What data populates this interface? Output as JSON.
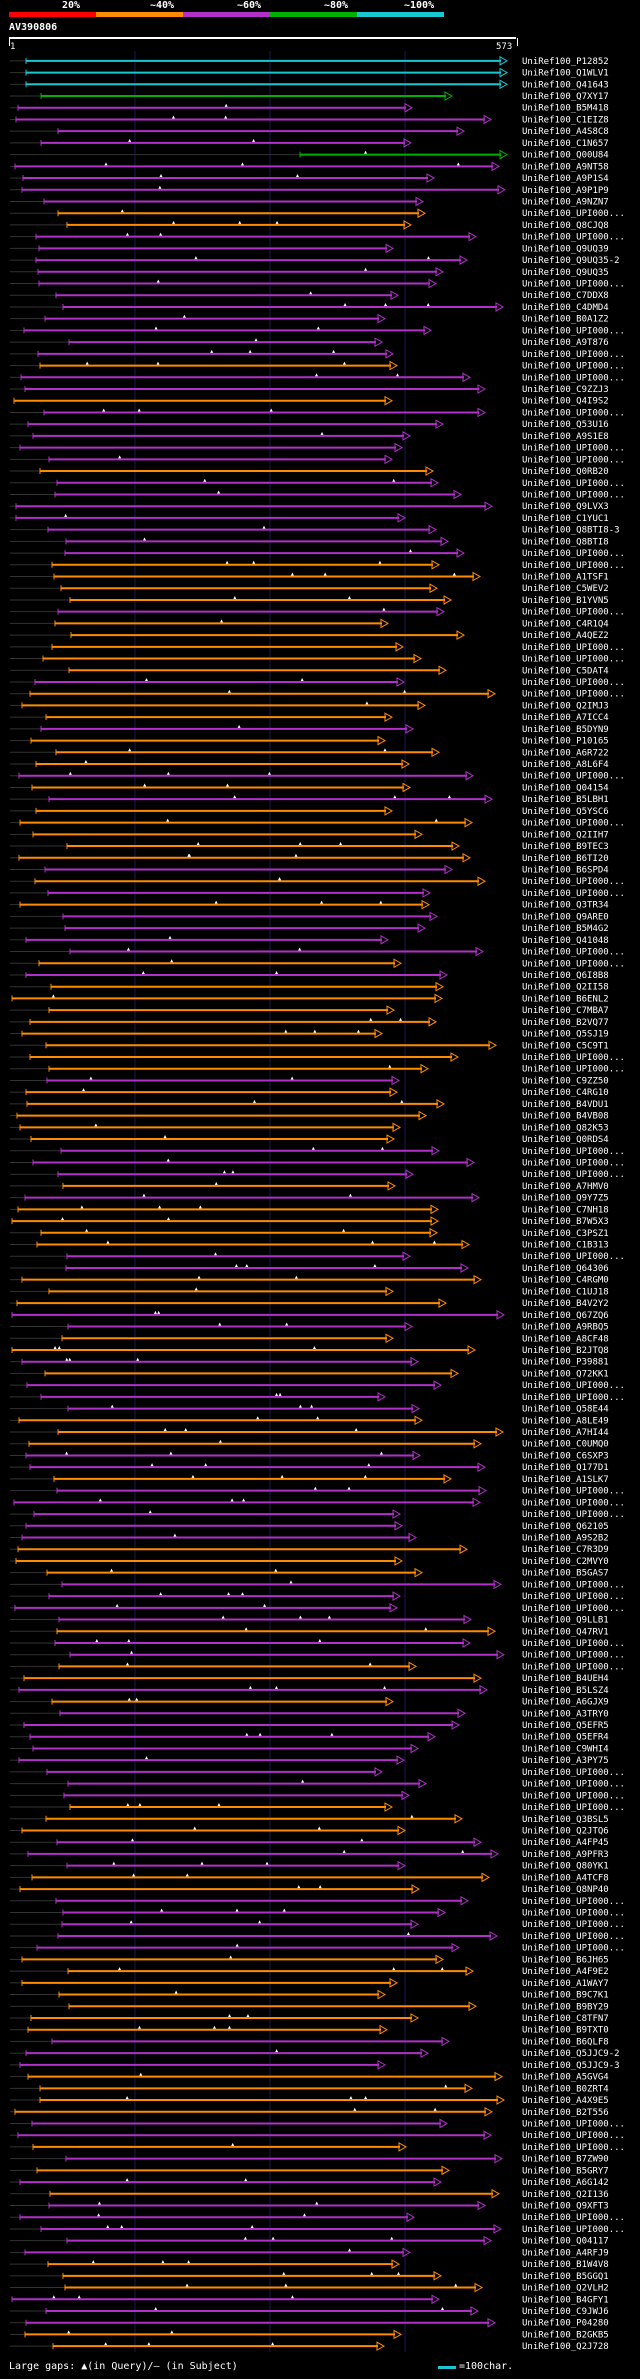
{
  "legend": {
    "labels": [
      "20%",
      "~40%",
      "~60%",
      "~80%",
      "~100%"
    ],
    "colors": [
      "#ff0000",
      "#ff8c00",
      "#b030c8",
      "#00b000",
      "#18c8d0"
    ]
  },
  "query": {
    "name": "AV390806",
    "start": "1",
    "end": "573"
  },
  "footer": {
    "gap_note": "Large gaps: ▲(in Query)/— (in Subject)",
    "scale_text": "=100char."
  },
  "chart_data": {
    "type": "alignment-overview",
    "title": "AV390806",
    "query_length": 573,
    "hits": [
      {
        "id": "UniRef100_P12852",
        "color": "#18c8d0"
      },
      {
        "id": "UniRef100_Q1WLV1",
        "color": "#18c8d0"
      },
      {
        "id": "UniRef100_Q41643",
        "color": "#18c8d0"
      },
      {
        "id": "UniRef100_Q7XY17",
        "color": "#00b000"
      },
      {
        "id": "UniRef100_B5M418",
        "color": "#b030c8"
      },
      {
        "id": "UniRef100_C1EIZ8",
        "color": "#b030c8"
      },
      {
        "id": "UniRef100_A4S8C8",
        "color": "#b030c8"
      },
      {
        "id": "UniRef100_C1N657",
        "color": "#b030c8"
      },
      {
        "id": "UniRef100_Q00U84",
        "color": "#00b000"
      },
      {
        "id": "UniRef100_A9NT58",
        "color": "#b030c8"
      },
      {
        "id": "UniRef100_A9P1S4",
        "color": "#b030c8"
      },
      {
        "id": "UniRef100_A9P1P9",
        "color": "#b030c8"
      },
      {
        "id": "UniRef100_A9NZN7",
        "color": "#b030c8"
      },
      {
        "id": "UniRef100_UPI000...",
        "color": "#ff8c00"
      },
      {
        "id": "UniRef100_Q8CJQ8",
        "color": "#ff8c00"
      },
      {
        "id": "UniRef100_UPI000...",
        "color": "#b030c8"
      },
      {
        "id": "UniRef100_Q9UQ39",
        "color": "#b030c8"
      },
      {
        "id": "UniRef100_Q9UQ35-2",
        "color": "#b030c8"
      },
      {
        "id": "UniRef100_Q9UQ35",
        "color": "#b030c8"
      },
      {
        "id": "UniRef100_UPI000...",
        "color": "#b030c8"
      },
      {
        "id": "UniRef100_C7DDX8",
        "color": "#b030c8"
      },
      {
        "id": "UniRef100_C4DMD4",
        "color": "#b030c8"
      },
      {
        "id": "UniRef100_B0A1Z2",
        "color": "#b030c8"
      },
      {
        "id": "UniRef100_UPI000...",
        "color": "#b030c8"
      },
      {
        "id": "UniRef100_A9T876",
        "color": "#b030c8"
      },
      {
        "id": "UniRef100_UPI000...",
        "color": "#b030c8"
      },
      {
        "id": "UniRef100_UPI000...",
        "color": "#ff8c00"
      },
      {
        "id": "UniRef100_UPI000...",
        "color": "#b030c8"
      },
      {
        "id": "UniRef100_C9ZZJ3",
        "color": "#b030c8"
      },
      {
        "id": "UniRef100_Q4I9S2",
        "color": "#ff8c00"
      },
      {
        "id": "UniRef100_UPI000...",
        "color": "#b030c8"
      },
      {
        "id": "UniRef100_Q53U16",
        "color": "#b030c8"
      },
      {
        "id": "UniRef100_A9S1E8",
        "color": "#b030c8"
      },
      {
        "id": "UniRef100_UPI000...",
        "color": "#b030c8"
      },
      {
        "id": "UniRef100_UPI000...",
        "color": "#b030c8"
      },
      {
        "id": "UniRef100_Q0RB20",
        "color": "#ff8c00"
      },
      {
        "id": "UniRef100_UPI000...",
        "color": "#b030c8"
      },
      {
        "id": "UniRef100_UPI000...",
        "color": "#b030c8"
      },
      {
        "id": "UniRef100_Q9LVX3",
        "color": "#b030c8"
      },
      {
        "id": "UniRef100_C1YUC1",
        "color": "#b030c8"
      },
      {
        "id": "UniRef100_Q8BTI8-3",
        "color": "#b030c8"
      },
      {
        "id": "UniRef100_Q8BTI8",
        "color": "#b030c8"
      },
      {
        "id": "UniRef100_UPI000...",
        "color": "#b030c8"
      },
      {
        "id": "UniRef100_UPI000...",
        "color": "#ff8c00"
      },
      {
        "id": "UniRef100_A1TSF1",
        "color": "#ff8c00"
      },
      {
        "id": "UniRef100_C5WEV2",
        "color": "#ff8c00"
      },
      {
        "id": "UniRef100_B1YVN5",
        "color": "#ff8c00"
      },
      {
        "id": "UniRef100_UPI000...",
        "color": "#b030c8"
      },
      {
        "id": "UniRef100_C4R1Q4",
        "color": "#ff8c00"
      },
      {
        "id": "UniRef100_A4QEZ2",
        "color": "#ff8c00"
      },
      {
        "id": "UniRef100_UPI000...",
        "color": "#ff8c00"
      },
      {
        "id": "UniRef100_UPI000...",
        "color": "#ff8c00"
      },
      {
        "id": "UniRef100_C5DAT4",
        "color": "#ff8c00"
      },
      {
        "id": "UniRef100_UPI000...",
        "color": "#b030c8"
      },
      {
        "id": "UniRef100_UPI000...",
        "color": "#ff8c00"
      },
      {
        "id": "UniRef100_Q2IMJ3",
        "color": "#ff8c00"
      },
      {
        "id": "UniRef100_A7ICC4",
        "color": "#ff8c00"
      },
      {
        "id": "UniRef100_B5DYN9",
        "color": "#b030c8"
      },
      {
        "id": "UniRef100_P10165",
        "color": "#ff8c00"
      },
      {
        "id": "UniRef100_A6R722",
        "color": "#ff8c00"
      },
      {
        "id": "UniRef100_A8L6F4",
        "color": "#ff8c00"
      },
      {
        "id": "UniRef100_UPI000...",
        "color": "#b030c8"
      },
      {
        "id": "UniRef100_Q04154",
        "color": "#ff8c00"
      },
      {
        "id": "UniRef100_B5LBH1",
        "color": "#b030c8"
      },
      {
        "id": "UniRef100_Q5YSC6",
        "color": "#ff8c00"
      },
      {
        "id": "UniRef100_UPI000...",
        "color": "#ff8c00"
      },
      {
        "id": "UniRef100_Q2IIH7",
        "color": "#ff8c00"
      },
      {
        "id": "UniRef100_B9TEC3",
        "color": "#ff8c00"
      },
      {
        "id": "UniRef100_B6TI20",
        "color": "#ff8c00"
      },
      {
        "id": "UniRef100_B6SPD4",
        "color": "#b030c8"
      },
      {
        "id": "UniRef100_UPI000...",
        "color": "#ff8c00"
      },
      {
        "id": "UniRef100_UPI000...",
        "color": "#b030c8"
      },
      {
        "id": "UniRef100_Q3TR34",
        "color": "#ff8c00"
      },
      {
        "id": "UniRef100_Q9ARE0",
        "color": "#b030c8"
      },
      {
        "id": "UniRef100_B5M4G2",
        "color": "#b030c8"
      },
      {
        "id": "UniRef100_Q41048",
        "color": "#b030c8"
      },
      {
        "id": "UniRef100_UPI000...",
        "color": "#b030c8"
      },
      {
        "id": "UniRef100_UPI000...",
        "color": "#ff8c00"
      },
      {
        "id": "UniRef100_Q6I8B8",
        "color": "#b030c8"
      },
      {
        "id": "UniRef100_Q2II58",
        "color": "#ff8c00"
      },
      {
        "id": "UniRef100_B6ENL2",
        "color": "#ff8c00"
      },
      {
        "id": "UniRef100_C7MBA7",
        "color": "#ff8c00"
      },
      {
        "id": "UniRef100_B2VQ77",
        "color": "#ff8c00"
      },
      {
        "id": "UniRef100_Q5SJ19",
        "color": "#ff8c00"
      },
      {
        "id": "UniRef100_C5C9T1",
        "color": "#ff8c00"
      },
      {
        "id": "UniRef100_UPI000...",
        "color": "#ff8c00"
      },
      {
        "id": "UniRef100_UPI000...",
        "color": "#ff8c00"
      },
      {
        "id": "UniRef100_C9ZZ50",
        "color": "#b030c8"
      },
      {
        "id": "UniRef100_C4RG10",
        "color": "#ff8c00"
      },
      {
        "id": "UniRef100_B4VDU1",
        "color": "#ff8c00"
      },
      {
        "id": "UniRef100_B4VB08",
        "color": "#ff8c00"
      },
      {
        "id": "UniRef100_Q82K53",
        "color": "#ff8c00"
      },
      {
        "id": "UniRef100_Q0RDS4",
        "color": "#ff8c00"
      },
      {
        "id": "UniRef100_UPI000...",
        "color": "#b030c8"
      },
      {
        "id": "UniRef100_UPI000...",
        "color": "#b030c8"
      },
      {
        "id": "UniRef100_UPI000...",
        "color": "#b030c8"
      },
      {
        "id": "UniRef100_A7HMV0",
        "color": "#ff8c00"
      },
      {
        "id": "UniRef100_Q9Y7Z5",
        "color": "#b030c8"
      },
      {
        "id": "UniRef100_C7NH18",
        "color": "#ff8c00"
      },
      {
        "id": "UniRef100_B7W5X3",
        "color": "#ff8c00"
      },
      {
        "id": "UniRef100_C3PSZ1",
        "color": "#ff8c00"
      },
      {
        "id": "UniRef100_C1B313",
        "color": "#ff8c00"
      },
      {
        "id": "UniRef100_UPI000...",
        "color": "#b030c8"
      },
      {
        "id": "UniRef100_Q64306",
        "color": "#b030c8"
      },
      {
        "id": "UniRef100_C4RGM0",
        "color": "#ff8c00"
      },
      {
        "id": "UniRef100_C1UJ18",
        "color": "#ff8c00"
      },
      {
        "id": "UniRef100_B4V2Y2",
        "color": "#ff8c00"
      },
      {
        "id": "UniRef100_Q67ZQ6",
        "color": "#b030c8"
      },
      {
        "id": "UniRef100_A9RBQ5",
        "color": "#b030c8"
      },
      {
        "id": "UniRef100_A8CF48",
        "color": "#ff8c00"
      },
      {
        "id": "UniRef100_B2JTQ8",
        "color": "#ff8c00"
      },
      {
        "id": "UniRef100_P39881",
        "color": "#b030c8"
      },
      {
        "id": "UniRef100_Q72KK1",
        "color": "#ff8c00"
      },
      {
        "id": "UniRef100_UPI000...",
        "color": "#b030c8"
      },
      {
        "id": "UniRef100_UPI000...",
        "color": "#b030c8"
      },
      {
        "id": "UniRef100_Q58E44",
        "color": "#b030c8"
      },
      {
        "id": "UniRef100_A8LE49",
        "color": "#ff8c00"
      },
      {
        "id": "UniRef100_A7HI44",
        "color": "#ff8c00"
      },
      {
        "id": "UniRef100_C0UMQ0",
        "color": "#ff8c00"
      },
      {
        "id": "UniRef100_C6SXP3",
        "color": "#b030c8"
      },
      {
        "id": "UniRef100_Q177D1",
        "color": "#b030c8"
      },
      {
        "id": "UniRef100_A1SLK7",
        "color": "#ff8c00"
      },
      {
        "id": "UniRef100_UPI000...",
        "color": "#b030c8"
      },
      {
        "id": "UniRef100_UPI000...",
        "color": "#b030c8"
      },
      {
        "id": "UniRef100_UPI000...",
        "color": "#b030c8"
      },
      {
        "id": "UniRef100_Q62105",
        "color": "#b030c8"
      },
      {
        "id": "UniRef100_A9S2B2",
        "color": "#b030c8"
      },
      {
        "id": "UniRef100_C7R3D9",
        "color": "#ff8c00"
      },
      {
        "id": "UniRef100_C2MVY0",
        "color": "#ff8c00"
      },
      {
        "id": "UniRef100_B5GAS7",
        "color": "#ff8c00"
      },
      {
        "id": "UniRef100_UPI000...",
        "color": "#b030c8"
      },
      {
        "id": "UniRef100_UPI000...",
        "color": "#b030c8"
      },
      {
        "id": "UniRef100_UPI000...",
        "color": "#b030c8"
      },
      {
        "id": "UniRef100_Q9LLB1",
        "color": "#b030c8"
      },
      {
        "id": "UniRef100_Q47RV1",
        "color": "#ff8c00"
      },
      {
        "id": "UniRef100_UPI000...",
        "color": "#b030c8"
      },
      {
        "id": "UniRef100_UPI000...",
        "color": "#b030c8"
      },
      {
        "id": "UniRef100_UPI000...",
        "color": "#ff8c00"
      },
      {
        "id": "UniRef100_B4UEH4",
        "color": "#ff8c00"
      },
      {
        "id": "UniRef100_B5LSZ4",
        "color": "#b030c8"
      },
      {
        "id": "UniRef100_A6GJX9",
        "color": "#ff8c00"
      },
      {
        "id": "UniRef100_A3TRY0",
        "color": "#b030c8"
      },
      {
        "id": "UniRef100_Q5EFR5",
        "color": "#b030c8"
      },
      {
        "id": "UniRef100_Q5EFR4",
        "color": "#b030c8"
      },
      {
        "id": "UniRef100_C9WHI4",
        "color": "#b030c8"
      },
      {
        "id": "UniRef100_A3PY75",
        "color": "#b030c8"
      },
      {
        "id": "UniRef100_UPI000...",
        "color": "#b030c8"
      },
      {
        "id": "UniRef100_UPI000...",
        "color": "#b030c8"
      },
      {
        "id": "UniRef100_UPI000...",
        "color": "#b030c8"
      },
      {
        "id": "UniRef100_UPI000...",
        "color": "#ff8c00"
      },
      {
        "id": "UniRef100_Q3BSL5",
        "color": "#ff8c00"
      },
      {
        "id": "UniRef100_Q2JTQ6",
        "color": "#ff8c00"
      },
      {
        "id": "UniRef100_A4FP45",
        "color": "#b030c8"
      },
      {
        "id": "UniRef100_A9PFR3",
        "color": "#b030c8"
      },
      {
        "id": "UniRef100_Q80YK1",
        "color": "#b030c8"
      },
      {
        "id": "UniRef100_A4TCF8",
        "color": "#ff8c00"
      },
      {
        "id": "UniRef100_Q8NP40",
        "color": "#ff8c00"
      },
      {
        "id": "UniRef100_UPI000...",
        "color": "#b030c8"
      },
      {
        "id": "UniRef100_UPI000...",
        "color": "#b030c8"
      },
      {
        "id": "UniRef100_UPI000...",
        "color": "#b030c8"
      },
      {
        "id": "UniRef100_UPI000...",
        "color": "#b030c8"
      },
      {
        "id": "UniRef100_UPI000...",
        "color": "#b030c8"
      },
      {
        "id": "UniRef100_B6JH65",
        "color": "#ff8c00"
      },
      {
        "id": "UniRef100_A4F9E2",
        "color": "#ff8c00"
      },
      {
        "id": "UniRef100_A1WAY7",
        "color": "#ff8c00"
      },
      {
        "id": "UniRef100_B9C7K1",
        "color": "#ff8c00"
      },
      {
        "id": "UniRef100_B9BY29",
        "color": "#ff8c00"
      },
      {
        "id": "UniRef100_C8TFN7",
        "color": "#ff8c00"
      },
      {
        "id": "UniRef100_B9TXT0",
        "color": "#ff8c00"
      },
      {
        "id": "UniRef100_B6QLF8",
        "color": "#b030c8"
      },
      {
        "id": "UniRef100_Q5JJC9-2",
        "color": "#b030c8"
      },
      {
        "id": "UniRef100_Q5JJC9-3",
        "color": "#b030c8"
      },
      {
        "id": "UniRef100_A5GVG4",
        "color": "#ff8c00"
      },
      {
        "id": "UniRef100_B0ZRT4",
        "color": "#ff8c00"
      },
      {
        "id": "UniRef100_A4X9E5",
        "color": "#ff8c00"
      },
      {
        "id": "UniRef100_B2T556",
        "color": "#ff8c00"
      },
      {
        "id": "UniRef100_UPI000...",
        "color": "#b030c8"
      },
      {
        "id": "UniRef100_UPI000...",
        "color": "#b030c8"
      },
      {
        "id": "UniRef100_UPI000...",
        "color": "#ff8c00"
      },
      {
        "id": "UniRef100_B7ZW90",
        "color": "#b030c8"
      },
      {
        "id": "UniRef100_B5GRY7",
        "color": "#ff8c00"
      },
      {
        "id": "UniRef100_A6G142",
        "color": "#b030c8"
      },
      {
        "id": "UniRef100_Q2I136",
        "color": "#ff8c00"
      },
      {
        "id": "UniRef100_Q9XFT3",
        "color": "#b030c8"
      },
      {
        "id": "UniRef100_UPI000...",
        "color": "#b030c8"
      },
      {
        "id": "UniRef100_UPI000...",
        "color": "#b030c8"
      },
      {
        "id": "UniRef100_Q04117",
        "color": "#b030c8"
      },
      {
        "id": "UniRef100_A4RFJ9",
        "color": "#b030c8"
      },
      {
        "id": "UniRef100_B1W4V8",
        "color": "#ff8c00"
      },
      {
        "id": "UniRef100_B5GGQ1",
        "color": "#ff8c00"
      },
      {
        "id": "UniRef100_Q2VLH2",
        "color": "#ff8c00"
      },
      {
        "id": "UniRef100_B4GFY1",
        "color": "#b030c8"
      },
      {
        "id": "UniRef100_C9JWJ6",
        "color": "#b030c8"
      },
      {
        "id": "UniRef100_P04280",
        "color": "#b030c8"
      },
      {
        "id": "UniRef100_B2GKB5",
        "color": "#ff8c00"
      },
      {
        "id": "UniRef100_Q2J728",
        "color": "#ff8c00"
      }
    ]
  }
}
